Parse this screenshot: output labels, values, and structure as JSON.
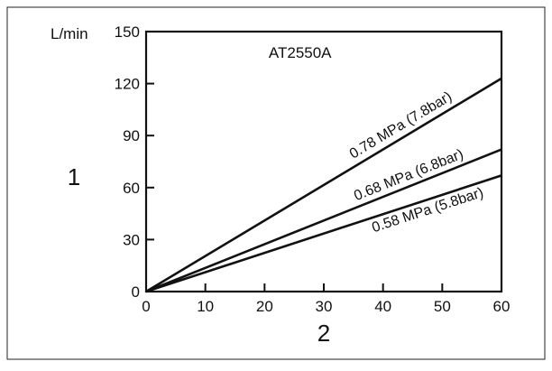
{
  "chart_data": {
    "type": "line",
    "title": "AT2550A",
    "ylabel": "1",
    "y_unit": "L/min",
    "xlabel": "2",
    "xlim": [
      0,
      60
    ],
    "ylim": [
      0,
      150
    ],
    "x_ticks": [
      0,
      10,
      20,
      30,
      40,
      50,
      60
    ],
    "y_ticks": [
      0,
      30,
      60,
      90,
      120,
      150
    ],
    "grid": false,
    "legend": "inline labels along lines",
    "series": [
      {
        "name": "0.78 MPa (7.8bar)",
        "x": [
          0,
          60
        ],
        "y": [
          0,
          123
        ]
      },
      {
        "name": "0.68 MPa (6.8bar)",
        "x": [
          0,
          60
        ],
        "y": [
          0,
          82
        ]
      },
      {
        "name": "0.58 MPa (5.8bar)",
        "x": [
          0,
          60
        ],
        "y": [
          0,
          67
        ]
      }
    ]
  }
}
